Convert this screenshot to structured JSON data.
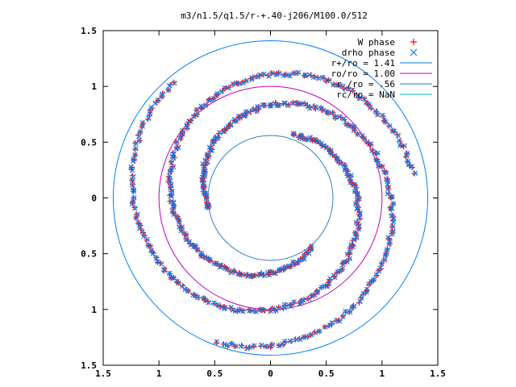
{
  "chart_data": {
    "type": "scatter",
    "title": "m3/n1.5/q1.5/r-+.40-j206/M100.0/512",
    "xlim": [
      -1.5,
      1.5
    ],
    "ylim": [
      -1.5,
      1.5
    ],
    "x_ticks": [
      -1.5,
      -1,
      -0.5,
      0,
      0.5,
      1,
      1.5
    ],
    "y_ticks": [
      -1.5,
      -1,
      -0.5,
      0,
      0.5,
      1,
      1.5
    ],
    "x_tick_labels": [
      "1.5",
      "1",
      "0.5",
      "0",
      "0.5",
      "1",
      "1.5"
    ],
    "y_tick_labels": [
      "1.5",
      "1",
      "0.5",
      "0",
      "0.5",
      "1",
      "1.5"
    ],
    "grid": false,
    "legend_position": "top-right",
    "series": [
      {
        "name": "W phase",
        "marker": "plus",
        "color": "#ff0000"
      },
      {
        "name": "drho phase",
        "marker": "cross",
        "color": "#0080ff"
      },
      {
        "name": "r+/ro = 1.41",
        "type": "circle",
        "radius": 1.41,
        "color": "#0080ff"
      },
      {
        "name": "ro/ro = 1.00",
        "type": "circle",
        "radius": 1.0,
        "color": "#c000c0"
      },
      {
        "name": "r-/ro = .56",
        "type": "circle",
        "radius": 0.56,
        "color": "#3080c0"
      },
      {
        "name": "rc/ro = NaN",
        "type": "circle",
        "radius": null,
        "color": "#00c0c0"
      }
    ],
    "spiral_arms": [
      {
        "r_start": 0.56,
        "r_end": 1.38,
        "theta_start": 190,
        "theta_end": -110
      },
      {
        "r_start": 0.6,
        "r_end": 1.36,
        "theta_start": 70,
        "theta_end": -230
      },
      {
        "r_start": 0.58,
        "r_end": 1.3,
        "theta_start": -50,
        "theta_end": -350
      }
    ]
  }
}
